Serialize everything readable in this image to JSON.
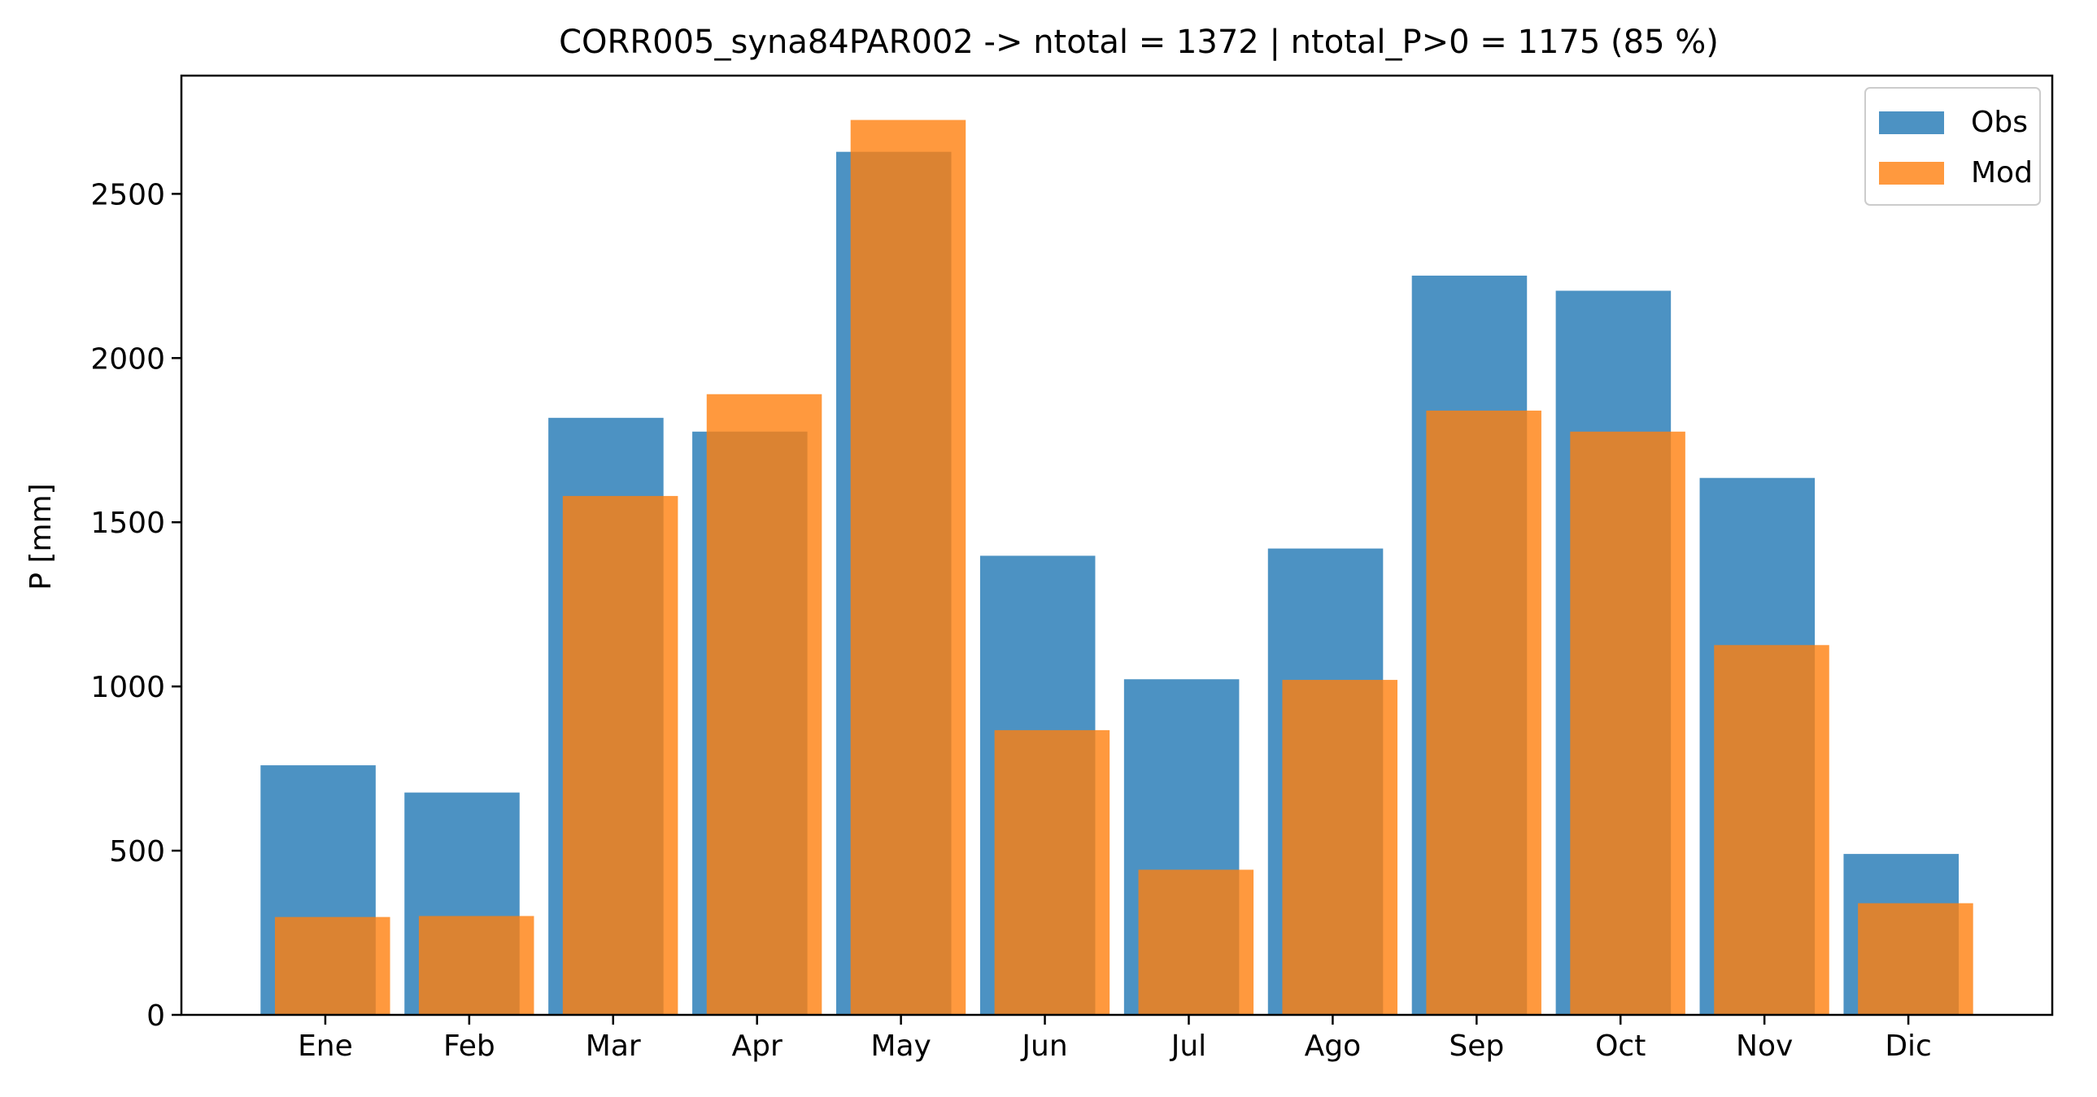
{
  "chart_data": {
    "type": "bar",
    "title": "CORR005_syna84PAR002 -> ntotal = 1372 | ntotal_P>0 = 1175 (85 %)",
    "xlabel": "",
    "ylabel": "P [mm]",
    "categories": [
      "Ene",
      "Feb",
      "Mar",
      "Apr",
      "May",
      "Jun",
      "Jul",
      "Ago",
      "Sep",
      "Oct",
      "Nov",
      "Dic"
    ],
    "series": [
      {
        "name": "Obs",
        "color": "#1f77b4",
        "values": [
          760,
          677,
          1818,
          1776,
          2628,
          1398,
          1022,
          1420,
          2251,
          2205,
          1635,
          490
        ]
      },
      {
        "name": "Mod",
        "color": "#ff7f0e",
        "values": [
          298,
          301,
          1580,
          1890,
          2725,
          867,
          442,
          1020,
          1840,
          1776,
          1126,
          340
        ]
      }
    ],
    "ylim": [
      0,
      2860
    ],
    "yticks": [
      0,
      500,
      1000,
      1500,
      2000,
      2500
    ],
    "grid": false,
    "legend_position": "top-right"
  }
}
